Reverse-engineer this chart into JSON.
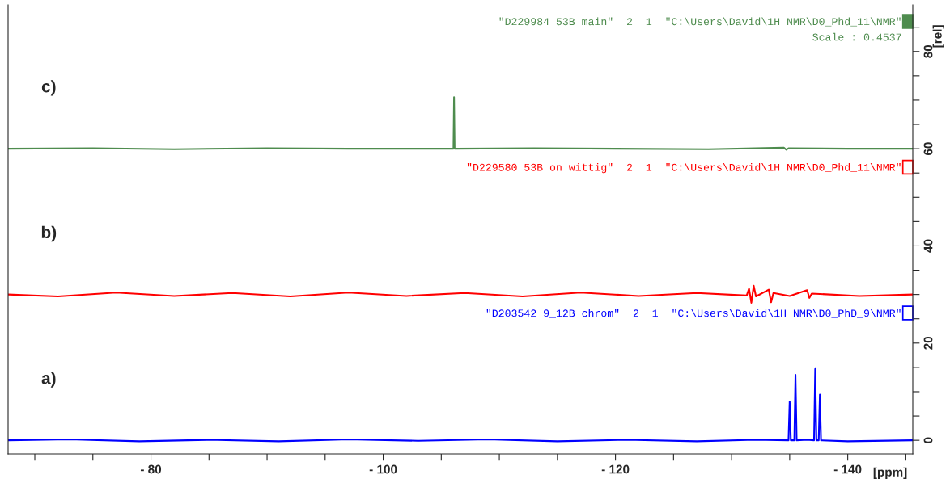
{
  "chart_data": {
    "type": "line",
    "xlabel": "[ppm]",
    "ylabel": "[rel]",
    "xlim": [
      -67.7,
      -145.6
    ],
    "ylim": [
      -2.8,
      89.6
    ],
    "xticks": [
      {
        "value": -70,
        "label": null
      },
      {
        "value": -75,
        "label": null
      },
      {
        "value": -80,
        "label": "- 80"
      },
      {
        "value": -85,
        "label": null
      },
      {
        "value": -90,
        "label": null
      },
      {
        "value": -95,
        "label": null
      },
      {
        "value": -100,
        "label": "- 100"
      },
      {
        "value": -105,
        "label": null
      },
      {
        "value": -110,
        "label": null
      },
      {
        "value": -115,
        "label": null
      },
      {
        "value": -120,
        "label": "- 120"
      },
      {
        "value": -125,
        "label": null
      },
      {
        "value": -130,
        "label": null
      },
      {
        "value": -135,
        "label": null
      },
      {
        "value": -140,
        "label": "- 140"
      },
      {
        "value": -145,
        "label": null
      }
    ],
    "yticks": [
      0,
      {
        "value": 5,
        "label": null
      },
      {
        "value": 10,
        "label": null
      },
      {
        "value": 15,
        "label": null
      },
      20,
      {
        "value": 25,
        "label": null
      },
      {
        "value": 30,
        "label": null
      },
      {
        "value": 35,
        "label": null
      },
      40,
      {
        "value": 45,
        "label": null
      },
      {
        "value": 50,
        "label": null
      },
      {
        "value": 55,
        "label": null
      },
      60,
      {
        "value": 65,
        "label": null
      },
      {
        "value": 70,
        "label": null
      },
      {
        "value": 75,
        "label": null
      },
      80,
      {
        "value": 85,
        "label": null
      }
    ],
    "grid": false,
    "legend": "top right",
    "marker": "none",
    "line_style": "solid",
    "series": [
      {
        "name": "\"D229984 53B main\"  2  1  \"C:\\Users\\David\\1H NMR\\D0_Phd_11\\NMR\"",
        "color": "#4e8c4e",
        "x": [
          -67.7,
          -75,
          -82,
          -90,
          -97,
          -105.95,
          -106.05,
          -106.1,
          -106.15,
          -106.25,
          -113,
          -120,
          -128,
          -134.5,
          -134.7,
          -134.9,
          -140,
          -145.6
        ],
        "values": [
          60.0,
          60.1,
          59.9,
          60.1,
          60.0,
          60.0,
          60.0,
          70.6,
          60.0,
          60.0,
          60.1,
          60.0,
          59.9,
          60.2,
          59.8,
          60.1,
          60.0,
          60.0
        ]
      },
      {
        "name": "\"D229580 53B on wittig\"  2  1  \"C:\\Users\\David\\1H NMR\\D0_Phd_11\\NMR\"",
        "color": "#ff0000",
        "x": [
          -67.7,
          -72,
          -77,
          -82,
          -87,
          -92,
          -97,
          -102,
          -107,
          -112,
          -117,
          -122,
          -127,
          -131.3,
          -131.5,
          -131.7,
          -131.9,
          -132.1,
          -133.2,
          -133.4,
          -133.6,
          -135,
          -136.5,
          -136.7,
          -136.9,
          -141,
          -145.6
        ],
        "values": [
          30.0,
          29.6,
          30.4,
          29.7,
          30.3,
          29.6,
          30.4,
          29.7,
          30.3,
          29.6,
          30.4,
          29.7,
          30.3,
          29.8,
          31.2,
          28.3,
          31.8,
          29.6,
          31.0,
          28.4,
          30.3,
          29.7,
          30.9,
          29.3,
          30.2,
          29.7,
          30.0
        ]
      },
      {
        "name": "\"D203542 9_12B chrom\"  2  1  \"C:\\Users\\David\\1H NMR\\D0_PhD_9\\NMR\"",
        "color": "#0000ff",
        "x": [
          -67.7,
          -73,
          -79,
          -85,
          -91,
          -97,
          -103,
          -109,
          -115,
          -121,
          -127,
          -132,
          -134.9,
          -135.0,
          -135.1,
          -135.4,
          -135.5,
          -135.6,
          -136.5,
          -137.1,
          -137.2,
          -137.3,
          -137.5,
          -137.6,
          -137.7,
          -140,
          -145.6
        ],
        "values": [
          0.0,
          0.2,
          -0.2,
          0.1,
          -0.2,
          0.2,
          -0.1,
          0.2,
          -0.2,
          0.1,
          -0.2,
          0.1,
          0.0,
          8.0,
          0.0,
          0.0,
          13.5,
          0.0,
          0.1,
          0.0,
          14.7,
          0.0,
          0.0,
          9.4,
          0.0,
          -0.2,
          0.0
        ]
      }
    ],
    "annotations": [
      "c)",
      "b)",
      "a)",
      "Scale : 0.4537"
    ]
  }
}
